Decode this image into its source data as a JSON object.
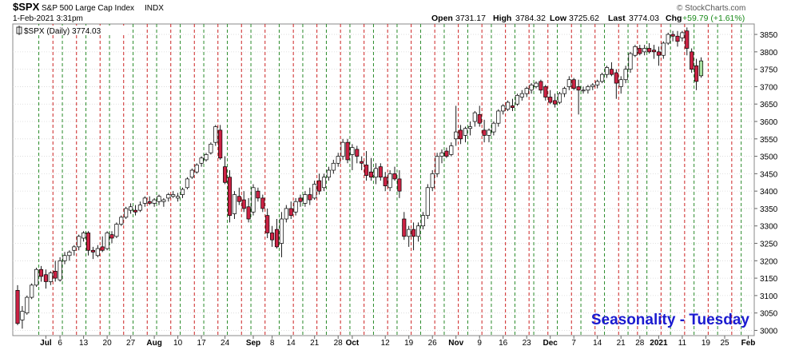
{
  "header": {
    "symbol": "$SPX",
    "name": "S&P 500 Large Cap Index",
    "exchange": "INDX",
    "datetime": "1-Feb-2021 3:31pm",
    "open_label": "Open",
    "open": "3731.17",
    "high_label": "High",
    "high": "3784.32",
    "low_label": "Low",
    "low": "3725.62",
    "last_label": "Last",
    "last": "3774.03",
    "chg_label": "Chg",
    "chg": "+59.79 (+1.61%)",
    "watermark": "© StockCharts.com",
    "legend": "$SPX (Daily) 3774.03"
  },
  "annotation": "Seasonality - Tuesday",
  "colors": {
    "up": "#ffffff",
    "down": "#cc2244",
    "last": "#a8e0a0",
    "green_line": "#2a8a2a",
    "red_line": "#cc2222",
    "annotation": "#1a1ad0"
  },
  "chart_data": {
    "type": "candlestick",
    "y_range": [
      2985,
      3880
    ],
    "y_ticks": [
      3000,
      3050,
      3100,
      3150,
      3200,
      3250,
      3300,
      3350,
      3400,
      3450,
      3500,
      3550,
      3600,
      3650,
      3700,
      3750,
      3800,
      3850
    ],
    "x_labels": [
      {
        "label": "Jul",
        "bar": 6
      },
      {
        "label": "6",
        "bar": 9
      },
      {
        "label": "13",
        "bar": 14
      },
      {
        "label": "20",
        "bar": 19
      },
      {
        "label": "27",
        "bar": 24
      },
      {
        "label": "Aug",
        "bar": 29
      },
      {
        "label": "10",
        "bar": 34
      },
      {
        "label": "17",
        "bar": 39
      },
      {
        "label": "24",
        "bar": 44
      },
      {
        "label": "Sep",
        "bar": 50
      },
      {
        "label": "8",
        "bar": 54
      },
      {
        "label": "14",
        "bar": 58
      },
      {
        "label": "21",
        "bar": 63
      },
      {
        "label": "28",
        "bar": 68
      },
      {
        "label": "Oct",
        "bar": 71
      },
      {
        "label": "12",
        "bar": 78
      },
      {
        "label": "19",
        "bar": 83
      },
      {
        "label": "26",
        "bar": 88
      },
      {
        "label": "Nov",
        "bar": 93
      },
      {
        "label": "9",
        "bar": 98
      },
      {
        "label": "16",
        "bar": 103
      },
      {
        "label": "23",
        "bar": 108
      },
      {
        "label": "Dec",
        "bar": 113
      },
      {
        "label": "7",
        "bar": 118
      },
      {
        "label": "14",
        "bar": 123
      },
      {
        "label": "21",
        "bar": 128
      },
      {
        "label": "28",
        "bar": 132
      },
      {
        "label": "2021",
        "bar": 136
      },
      {
        "label": "11",
        "bar": 141
      },
      {
        "label": "19",
        "bar": 146
      },
      {
        "label": "25",
        "bar": 150
      },
      {
        "label": "Feb",
        "bar": 155
      }
    ],
    "green_lines": [
      5,
      10,
      15,
      20,
      25,
      30,
      35,
      40,
      45,
      50,
      56,
      61,
      66,
      71,
      76,
      81,
      86,
      91,
      96,
      101,
      106,
      110,
      115,
      120,
      125,
      130,
      134,
      139,
      144,
      149,
      154
    ],
    "red_lines": [
      8,
      13,
      18,
      23,
      28,
      33,
      38,
      43,
      48,
      53,
      59,
      64,
      69,
      74,
      79,
      84,
      89,
      94,
      99,
      104,
      109,
      113,
      118,
      123,
      128,
      132,
      137,
      142,
      147,
      152
    ],
    "candles": [
      [
        3115,
        3130,
        3015,
        3020
      ],
      [
        3030,
        3070,
        3005,
        3055
      ],
      [
        3050,
        3100,
        3045,
        3095
      ],
      [
        3095,
        3135,
        3090,
        3130
      ],
      [
        3130,
        3180,
        3125,
        3175
      ],
      [
        3175,
        3185,
        3140,
        3155
      ],
      [
        3160,
        3175,
        3120,
        3140
      ],
      [
        3140,
        3170,
        3130,
        3165
      ],
      [
        3170,
        3200,
        3140,
        3150
      ],
      [
        3145,
        3210,
        3140,
        3200
      ],
      [
        3200,
        3225,
        3190,
        3215
      ],
      [
        3215,
        3230,
        3200,
        3225
      ],
      [
        3230,
        3245,
        3215,
        3240
      ],
      [
        3240,
        3275,
        3230,
        3270
      ],
      [
        3265,
        3285,
        3255,
        3280
      ],
      [
        3280,
        3285,
        3215,
        3230
      ],
      [
        3230,
        3240,
        3205,
        3225
      ],
      [
        3215,
        3245,
        3210,
        3235
      ],
      [
        3240,
        3270,
        3225,
        3230
      ],
      [
        3235,
        3285,
        3230,
        3280
      ],
      [
        3275,
        3285,
        3250,
        3265
      ],
      [
        3270,
        3310,
        3265,
        3305
      ],
      [
        3305,
        3330,
        3300,
        3325
      ],
      [
        3325,
        3355,
        3320,
        3350
      ],
      [
        3345,
        3365,
        3335,
        3355
      ],
      [
        3345,
        3360,
        3330,
        3340
      ],
      [
        3345,
        3370,
        3340,
        3360
      ],
      [
        3365,
        3385,
        3355,
        3380
      ],
      [
        3370,
        3385,
        3360,
        3365
      ],
      [
        3365,
        3380,
        3355,
        3375
      ],
      [
        3370,
        3390,
        3360,
        3385
      ],
      [
        3370,
        3380,
        3355,
        3375
      ],
      [
        3380,
        3395,
        3370,
        3390
      ],
      [
        3385,
        3400,
        3380,
        3390
      ],
      [
        3380,
        3395,
        3370,
        3385
      ],
      [
        3390,
        3410,
        3380,
        3405
      ],
      [
        3410,
        3440,
        3405,
        3435
      ],
      [
        3440,
        3465,
        3435,
        3460
      ],
      [
        3455,
        3480,
        3450,
        3475
      ],
      [
        3480,
        3500,
        3470,
        3495
      ],
      [
        3490,
        3510,
        3485,
        3505
      ],
      [
        3510,
        3540,
        3505,
        3535
      ],
      [
        3540,
        3590,
        3530,
        3585
      ],
      [
        3575,
        3590,
        3490,
        3495
      ],
      [
        3470,
        3500,
        3420,
        3425
      ],
      [
        3440,
        3460,
        3310,
        3330
      ],
      [
        3335,
        3400,
        3320,
        3390
      ],
      [
        3385,
        3410,
        3360,
        3370
      ],
      [
        3375,
        3400,
        3340,
        3350
      ],
      [
        3355,
        3380,
        3310,
        3320
      ],
      [
        3340,
        3420,
        3330,
        3410
      ],
      [
        3400,
        3410,
        3370,
        3380
      ],
      [
        3380,
        3390,
        3340,
        3350
      ],
      [
        3330,
        3350,
        3265,
        3280
      ],
      [
        3280,
        3300,
        3240,
        3260
      ],
      [
        3290,
        3320,
        3235,
        3240
      ],
      [
        3250,
        3340,
        3210,
        3320
      ],
      [
        3320,
        3360,
        3310,
        3350
      ],
      [
        3350,
        3370,
        3320,
        3330
      ],
      [
        3340,
        3380,
        3330,
        3370
      ],
      [
        3380,
        3390,
        3355,
        3370
      ],
      [
        3365,
        3400,
        3355,
        3390
      ],
      [
        3390,
        3410,
        3360,
        3375
      ],
      [
        3380,
        3430,
        3375,
        3420
      ],
      [
        3430,
        3450,
        3390,
        3400
      ],
      [
        3410,
        3450,
        3400,
        3440
      ],
      [
        3440,
        3470,
        3430,
        3460
      ],
      [
        3460,
        3490,
        3450,
        3480
      ],
      [
        3480,
        3510,
        3470,
        3500
      ],
      [
        3500,
        3550,
        3490,
        3540
      ],
      [
        3540,
        3550,
        3480,
        3490
      ],
      [
        3505,
        3535,
        3460,
        3525
      ],
      [
        3520,
        3530,
        3480,
        3500
      ],
      [
        3485,
        3500,
        3460,
        3480
      ],
      [
        3475,
        3515,
        3430,
        3445
      ],
      [
        3455,
        3495,
        3430,
        3440
      ],
      [
        3440,
        3480,
        3420,
        3465
      ],
      [
        3470,
        3480,
        3430,
        3440
      ],
      [
        3440,
        3455,
        3400,
        3415
      ],
      [
        3410,
        3460,
        3400,
        3450
      ],
      [
        3450,
        3470,
        3430,
        3435
      ],
      [
        3435,
        3460,
        3380,
        3400
      ],
      [
        3320,
        3340,
        3260,
        3270
      ],
      [
        3270,
        3300,
        3240,
        3290
      ],
      [
        3290,
        3310,
        3230,
        3270
      ],
      [
        3270,
        3310,
        3255,
        3300
      ],
      [
        3300,
        3340,
        3290,
        3330
      ],
      [
        3330,
        3420,
        3320,
        3410
      ],
      [
        3410,
        3460,
        3400,
        3450
      ],
      [
        3450,
        3510,
        3440,
        3500
      ],
      [
        3500,
        3520,
        3480,
        3510
      ],
      [
        3515,
        3525,
        3495,
        3500
      ],
      [
        3505,
        3540,
        3500,
        3530
      ],
      [
        3550,
        3645,
        3530,
        3570
      ],
      [
        3575,
        3590,
        3535,
        3550
      ],
      [
        3560,
        3585,
        3540,
        3580
      ],
      [
        3580,
        3600,
        3560,
        3585
      ],
      [
        3600,
        3630,
        3585,
        3625
      ],
      [
        3620,
        3645,
        3585,
        3595
      ],
      [
        3575,
        3605,
        3540,
        3560
      ],
      [
        3560,
        3580,
        3540,
        3575
      ],
      [
        3570,
        3600,
        3560,
        3595
      ],
      [
        3595,
        3635,
        3585,
        3630
      ],
      [
        3630,
        3650,
        3620,
        3645
      ],
      [
        3635,
        3660,
        3630,
        3655
      ],
      [
        3645,
        3665,
        3630,
        3640
      ],
      [
        3650,
        3680,
        3645,
        3675
      ],
      [
        3670,
        3690,
        3660,
        3680
      ],
      [
        3680,
        3700,
        3670,
        3695
      ],
      [
        3690,
        3710,
        3680,
        3705
      ],
      [
        3700,
        3715,
        3695,
        3710
      ],
      [
        3715,
        3720,
        3680,
        3690
      ],
      [
        3700,
        3705,
        3660,
        3670
      ],
      [
        3670,
        3690,
        3650,
        3655
      ],
      [
        3660,
        3680,
        3640,
        3650
      ],
      [
        3655,
        3685,
        3650,
        3680
      ],
      [
        3680,
        3700,
        3670,
        3695
      ],
      [
        3700,
        3730,
        3690,
        3720
      ],
      [
        3720,
        3725,
        3690,
        3695
      ],
      [
        3700,
        3720,
        3620,
        3690
      ],
      [
        3690,
        3700,
        3680,
        3690
      ],
      [
        3690,
        3705,
        3680,
        3700
      ],
      [
        3700,
        3710,
        3690,
        3705
      ],
      [
        3705,
        3720,
        3695,
        3715
      ],
      [
        3715,
        3740,
        3710,
        3735
      ],
      [
        3735,
        3760,
        3725,
        3755
      ],
      [
        3750,
        3770,
        3730,
        3735
      ],
      [
        3740,
        3750,
        3665,
        3710
      ],
      [
        3700,
        3730,
        3680,
        3720
      ],
      [
        3720,
        3760,
        3710,
        3750
      ],
      [
        3750,
        3800,
        3740,
        3795
      ],
      [
        3790,
        3820,
        3785,
        3815
      ],
      [
        3810,
        3820,
        3790,
        3795
      ],
      [
        3800,
        3820,
        3790,
        3810
      ],
      [
        3810,
        3825,
        3795,
        3800
      ],
      [
        3805,
        3820,
        3780,
        3800
      ],
      [
        3800,
        3815,
        3760,
        3790
      ],
      [
        3790,
        3830,
        3780,
        3825
      ],
      [
        3825,
        3855,
        3820,
        3850
      ],
      [
        3850,
        3860,
        3830,
        3845
      ],
      [
        3845,
        3860,
        3815,
        3830
      ],
      [
        3840,
        3860,
        3830,
        3855
      ],
      [
        3860,
        3870,
        3790,
        3810
      ],
      [
        3800,
        3810,
        3740,
        3750
      ],
      [
        3760,
        3780,
        3690,
        3715
      ],
      [
        3731.17,
        3784.32,
        3725.62,
        3774.03
      ]
    ]
  }
}
